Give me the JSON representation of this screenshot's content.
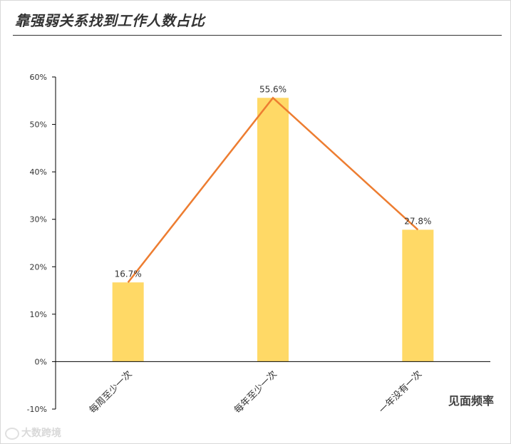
{
  "title": "靠强弱关系找到工作人数占比",
  "watermark": "大数跨境",
  "chart_data": {
    "type": "bar",
    "categories": [
      "每周至少一次",
      "每年至少一次",
      "一年没有一次"
    ],
    "values": [
      16.7,
      55.6,
      27.8
    ],
    "data_labels": [
      "16.7%",
      "55.6%",
      "27.8%"
    ],
    "overlay_line": true,
    "title": "靠强弱关系找到工作人数占比",
    "xlabel": "见面频率",
    "ylabel": "",
    "ylim": [
      -10,
      60
    ],
    "yticks": [
      "-10%",
      "0%",
      "10%",
      "20%",
      "30%",
      "40%",
      "50%",
      "60%"
    ],
    "grid": false,
    "bar_color": "#FFD966",
    "line_color": "#ED7D31"
  }
}
